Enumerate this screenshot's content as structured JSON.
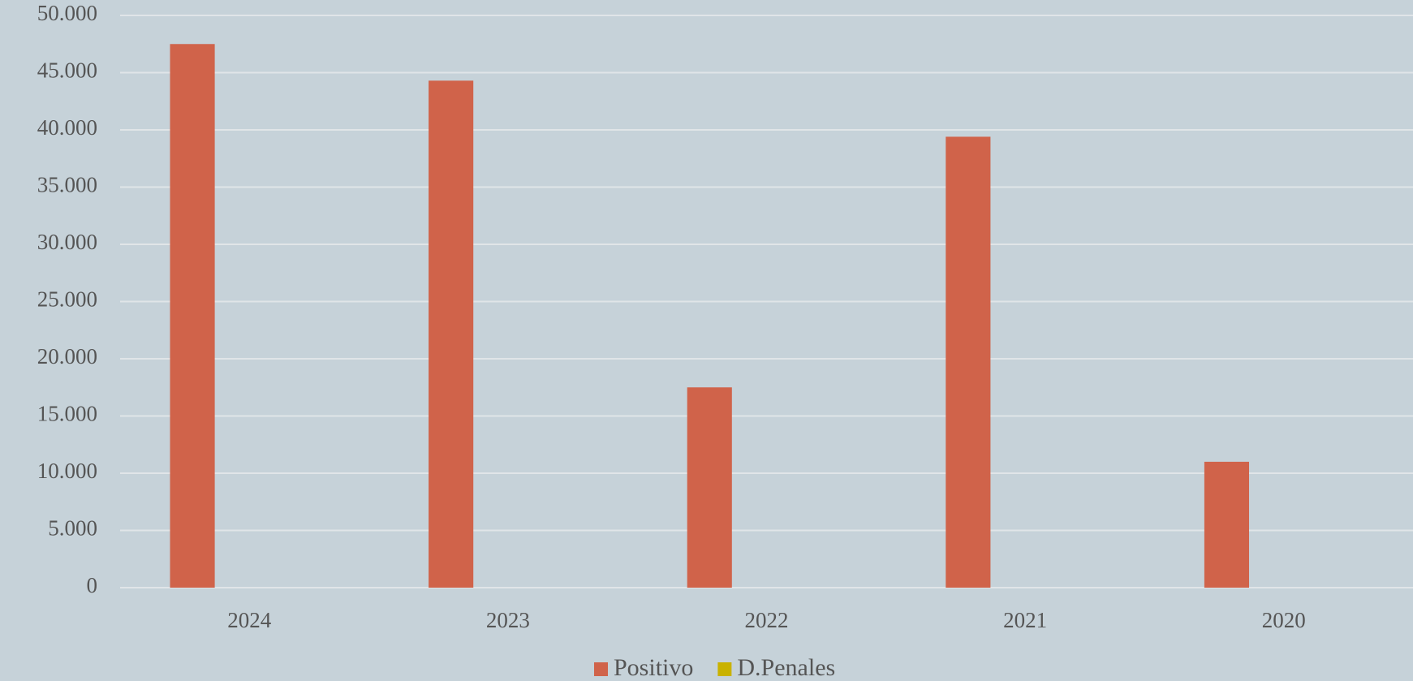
{
  "chart_data": {
    "type": "bar",
    "categories": [
      "2024",
      "2023",
      "2022",
      "2021",
      "2020"
    ],
    "series": [
      {
        "name": "Positivo",
        "color": "#d0634a",
        "values": [
          47500,
          44300,
          17500,
          39400,
          11000
        ]
      },
      {
        "name": "D.Penales",
        "color": "#c9b200",
        "values": [
          0,
          0,
          0,
          0,
          0
        ]
      }
    ],
    "ylim": [
      0,
      50000
    ],
    "yticks": [
      0,
      {
        "value": 5000,
        "label": "5.000"
      },
      {
        "value": 10000,
        "label": "10.000"
      },
      {
        "value": 15000,
        "label": "15.000"
      },
      {
        "value": 20000,
        "label": "20.000"
      },
      {
        "value": 25000,
        "label": "25.000"
      },
      {
        "value": 30000,
        "label": "30.000"
      },
      {
        "value": 35000,
        "label": "35.000"
      },
      {
        "value": 40000,
        "label": "40.000"
      },
      {
        "value": 45000,
        "label": "45.000"
      },
      {
        "value": 50000,
        "label": "50.000"
      }
    ],
    "grid": true,
    "legend": "bottom"
  }
}
